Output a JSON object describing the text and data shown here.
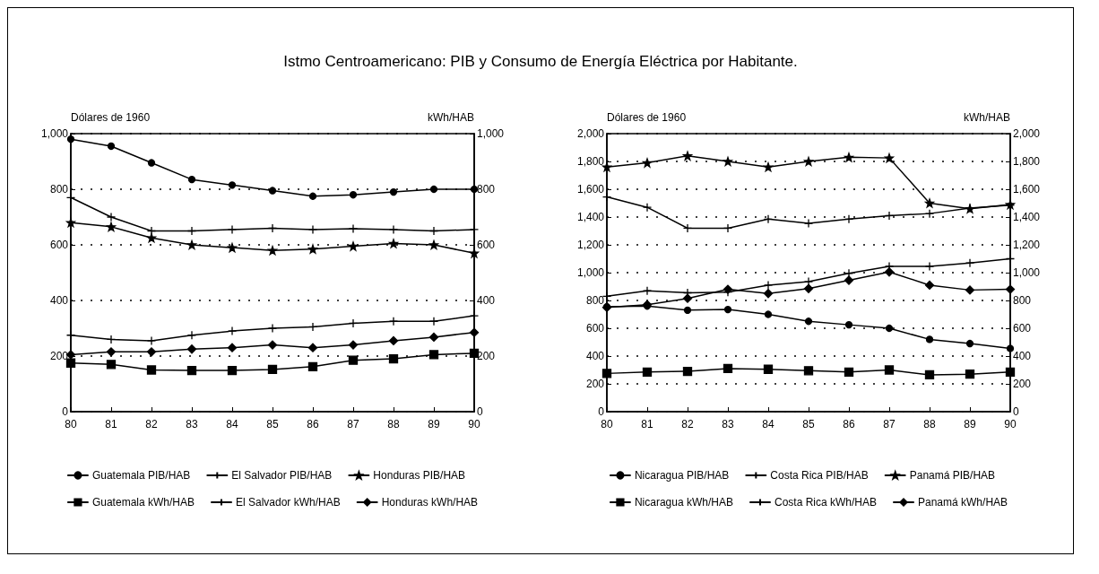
{
  "chart_data": [
    {
      "type": "line",
      "title": "Istmo Centroamericano:  PIB y Consumo de Energía Eléctrica por Habitante.",
      "ylabel": "Dólares de 1960",
      "y2label": "kWh/HAB",
      "categories": [
        "80",
        "81",
        "82",
        "83",
        "84",
        "85",
        "86",
        "87",
        "88",
        "89",
        "90"
      ],
      "series": [
        {
          "name": "Guatemala PIB/HAB",
          "color": "#000000",
          "marker": "circle",
          "values": [
            980,
            955,
            895,
            835,
            815,
            795,
            775,
            780,
            790,
            800,
            800
          ]
        },
        {
          "name": "El Salvador PIB/HAB",
          "color": "#000000",
          "marker": "cross",
          "values": [
            770,
            700,
            650,
            650,
            655,
            660,
            655,
            658,
            655,
            650,
            655
          ]
        },
        {
          "name": "Honduras PIB/HAB",
          "color": "#000000",
          "marker": "star",
          "values": [
            680,
            665,
            625,
            600,
            590,
            580,
            585,
            595,
            605,
            600,
            570
          ]
        },
        {
          "name": "Guatemala kWh/HAB",
          "color": "#000000",
          "marker": "square",
          "values": [
            175,
            170,
            150,
            148,
            148,
            152,
            162,
            185,
            190,
            205,
            210
          ]
        },
        {
          "name": "El Salvador kWh/HAB",
          "color": "#000000",
          "marker": "cross",
          "values": [
            275,
            260,
            255,
            275,
            290,
            300,
            305,
            318,
            325,
            325,
            345
          ]
        },
        {
          "name": "Honduras kWh/HAB",
          "color": "#000000",
          "marker": "diamond",
          "values": [
            205,
            215,
            215,
            225,
            230,
            240,
            230,
            240,
            255,
            268,
            285
          ]
        }
      ],
      "ylim": [
        0,
        1000
      ],
      "yticks": [
        0,
        200,
        400,
        600,
        800,
        {
          "value": 1000,
          "label": "1,000"
        }
      ],
      "y2lim": [
        0,
        1000
      ],
      "y2ticks": [
        0,
        200,
        400,
        600,
        800,
        {
          "value": 1000,
          "label": "1,000"
        }
      ],
      "grid": "y",
      "legend": "bottom",
      "line_style": "solid"
    },
    {
      "type": "line",
      "ylabel": "Dólares de 1960",
      "y2label": "kWh/HAB",
      "categories": [
        "80",
        "81",
        "82",
        "83",
        "84",
        "85",
        "86",
        "87",
        "88",
        "89",
        "90"
      ],
      "series": [
        {
          "name": "Nicaragua PIB/HAB",
          "color": "#000000",
          "marker": "circle",
          "values": [
            755,
            760,
            730,
            735,
            700,
            650,
            625,
            600,
            520,
            490,
            455
          ]
        },
        {
          "name": "Costa Rica PIB/HAB",
          "color": "#000000",
          "marker": "cross",
          "values": [
            1545,
            1470,
            1320,
            1320,
            1385,
            1355,
            1385,
            1410,
            1425,
            1465,
            1485
          ]
        },
        {
          "name": "Panamá PIB/HAB",
          "color": "#000000",
          "marker": "star",
          "values": [
            1760,
            1790,
            1840,
            1800,
            1760,
            1800,
            1830,
            1825,
            1500,
            1460,
            1490
          ]
        },
        {
          "name": "Nicaragua kWh/HAB",
          "color": "#000000",
          "marker": "square",
          "values": [
            275,
            285,
            290,
            310,
            305,
            295,
            285,
            300,
            265,
            270,
            285
          ]
        },
        {
          "name": "Costa Rica kWh/HAB",
          "color": "#000000",
          "marker": "cross",
          "values": [
            830,
            870,
            855,
            860,
            910,
            935,
            995,
            1045,
            1045,
            1070,
            1100
          ]
        },
        {
          "name": "Panamá kWh/HAB",
          "color": "#000000",
          "marker": "diamond",
          "values": [
            750,
            770,
            815,
            880,
            850,
            885,
            945,
            1005,
            910,
            875,
            880
          ]
        }
      ],
      "ylim": [
        0,
        2000
      ],
      "yticks": [
        0,
        200,
        400,
        600,
        800,
        {
          "value": 1000,
          "label": "1,000"
        },
        {
          "value": 1200,
          "label": "1,200"
        },
        {
          "value": 1400,
          "label": "1,400"
        },
        {
          "value": 1600,
          "label": "1,600"
        },
        {
          "value": 1800,
          "label": "1,800"
        },
        {
          "value": 2000,
          "label": "2,000"
        }
      ],
      "y2lim": [
        0,
        2000
      ],
      "y2ticks": [
        0,
        200,
        400,
        600,
        800,
        {
          "value": 1000,
          "label": "1,000"
        },
        {
          "value": 1200,
          "label": "1,200"
        },
        {
          "value": 1400,
          "label": "1,400"
        },
        {
          "value": 1600,
          "label": "1,600"
        },
        {
          "value": 1800,
          "label": "1,800"
        },
        {
          "value": 2000,
          "label": "2,000"
        }
      ],
      "grid": "y",
      "legend": "bottom",
      "line_style": "solid"
    }
  ]
}
